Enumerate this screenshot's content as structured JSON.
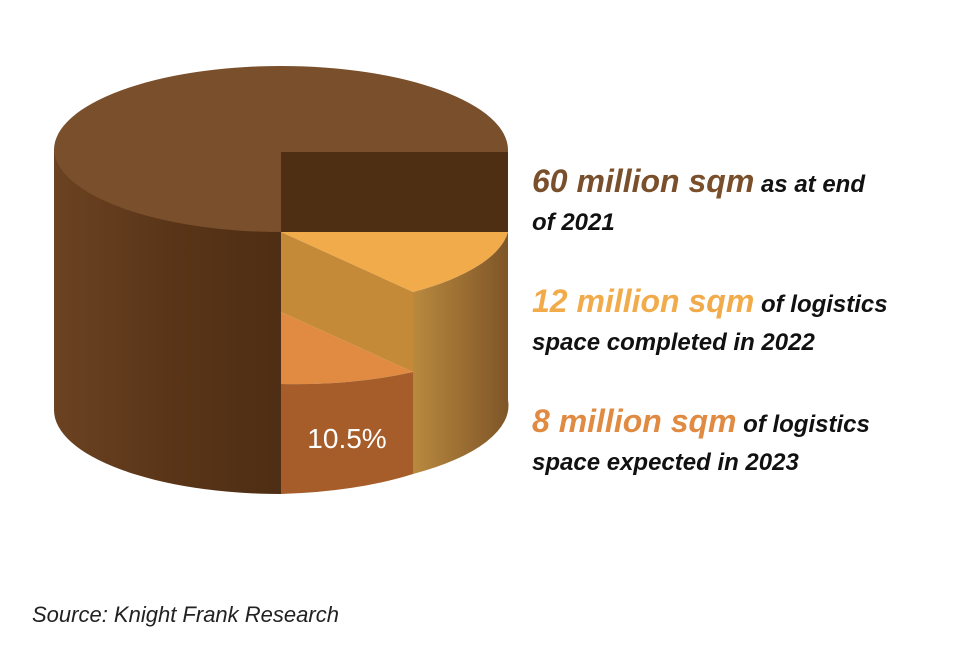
{
  "chart_data": {
    "type": "pie",
    "style": "3d-cylinder",
    "slices": [
      {
        "label": "60 million sqm",
        "value": 60,
        "color": "#7a4f2b"
      },
      {
        "label": "12 million sqm",
        "value": 12,
        "color": "#f2ab4b"
      },
      {
        "label": "8 million sqm",
        "value": 8,
        "color": "#e08a42"
      }
    ],
    "data_labels": [
      "10.5%"
    ],
    "legend": [
      {
        "highlight": "60 million sqm",
        "rest_line1": " as at end",
        "rest_line2": "of 2021",
        "color": "#7a4f2b"
      },
      {
        "highlight": "12 million sqm",
        "rest_line1": " of logistics",
        "rest_line2": "space completed in 2022",
        "color": "#f2ab4b"
      },
      {
        "highlight": "8 million sqm",
        "rest_line1": " of logistics",
        "rest_line2": "space expected in 2023",
        "color": "#e08a42"
      }
    ],
    "legend_position": "right"
  },
  "source": "Source: Knight Frank Research"
}
